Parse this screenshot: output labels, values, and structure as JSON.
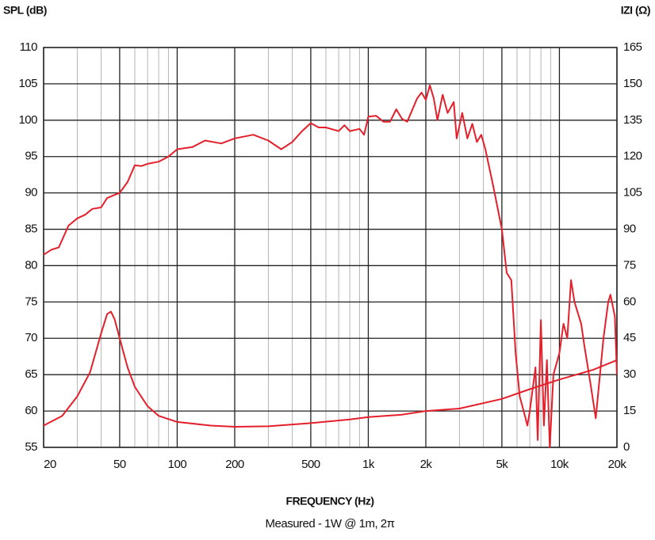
{
  "chart_data": {
    "type": "line",
    "y_label": "SPL (dB)",
    "y2_label": "IZI (Ω)",
    "x_label": "FREQUENCY (Hz)",
    "subtitle": "Measured - 1W @ 1m, 2π",
    "xscale": "log",
    "xlim": [
      20,
      20000
    ],
    "xticks": [
      20,
      50,
      100,
      200,
      500,
      {
        "value": 1000,
        "label": "1k"
      },
      {
        "value": 2000,
        "label": "2k"
      },
      {
        "value": 5000,
        "label": "5k"
      },
      {
        "value": 10000,
        "label": "10k"
      },
      {
        "value": 20000,
        "label": "20k"
      }
    ],
    "xminor": [
      30,
      40,
      60,
      70,
      80,
      90,
      300,
      400,
      600,
      700,
      800,
      900,
      3000,
      4000,
      6000,
      7000,
      8000,
      9000
    ],
    "ylim": [
      55,
      110
    ],
    "yticks": [
      55,
      60,
      65,
      70,
      75,
      80,
      85,
      90,
      95,
      100,
      105,
      110
    ],
    "y2lim": [
      0,
      165
    ],
    "y2ticks": [
      0,
      15,
      30,
      45,
      60,
      75,
      90,
      105,
      120,
      135,
      150,
      165
    ],
    "grid": true,
    "series": [
      {
        "color": "#e3202b",
        "axis": "y",
        "x": [
          20,
          22,
          24,
          27,
          30,
          33,
          36,
          40,
          43,
          50,
          55,
          60,
          65,
          70,
          80,
          90,
          100,
          120,
          140,
          170,
          200,
          250,
          300,
          350,
          400,
          450,
          500,
          550,
          600,
          700,
          750,
          800,
          900,
          950,
          1000,
          1100,
          1200,
          1300,
          1400,
          1500,
          1600,
          1800,
          1900,
          2000,
          2100,
          2200,
          2300,
          2450,
          2600,
          2800,
          2900,
          3100,
          3300,
          3500,
          3700,
          3900,
          4100,
          4500,
          5000,
          5300,
          5600,
          5900,
          6200,
          6500,
          6800,
          7000,
          7500,
          7700,
          8000,
          8300,
          8600,
          8900,
          9300,
          10000,
          10500,
          11000,
          11500,
          12000,
          13000,
          13500,
          14500,
          15500,
          17000,
          18000,
          18500,
          19500,
          20000
        ],
        "values": [
          81.5,
          82.2,
          82.5,
          85.5,
          86.5,
          87,
          87.8,
          88,
          89.3,
          90,
          91.5,
          93.8,
          93.7,
          94,
          94.3,
          95,
          96,
          96.3,
          97.2,
          96.8,
          97.5,
          98,
          97.2,
          96,
          97,
          98.5,
          99.6,
          99,
          99,
          98.5,
          99.3,
          98.5,
          98.8,
          98,
          100.5,
          100.6,
          99.8,
          99.8,
          101.5,
          100.2,
          99.8,
          103,
          103.8,
          102.8,
          104.8,
          103,
          100,
          103.5,
          101,
          102.5,
          97.5,
          101,
          97.5,
          99.5,
          97,
          98,
          96,
          91,
          85,
          79,
          78,
          68,
          62,
          60,
          58,
          60,
          66,
          56,
          72.5,
          58,
          67,
          55,
          65,
          68,
          72,
          70,
          78,
          75,
          72,
          69,
          64,
          59,
          70,
          75,
          76,
          73,
          65
        ]
      },
      {
        "color": "#e3202b",
        "axis": "y2",
        "x": [
          20,
          25,
          30,
          35,
          40,
          43,
          45,
          47,
          50,
          55,
          60,
          70,
          80,
          100,
          150,
          200,
          300,
          500,
          800,
          1000,
          1500,
          2000,
          3000,
          5000,
          7000,
          10000,
          15000,
          20000
        ],
        "values": [
          9,
          13,
          21,
          31,
          47,
          55,
          56,
          53,
          45,
          33,
          25,
          17,
          13,
          10.5,
          9,
          8.5,
          8.7,
          10,
          11.5,
          12.5,
          13.5,
          15,
          16,
          20,
          24,
          28,
          32,
          36
        ]
      }
    ]
  }
}
